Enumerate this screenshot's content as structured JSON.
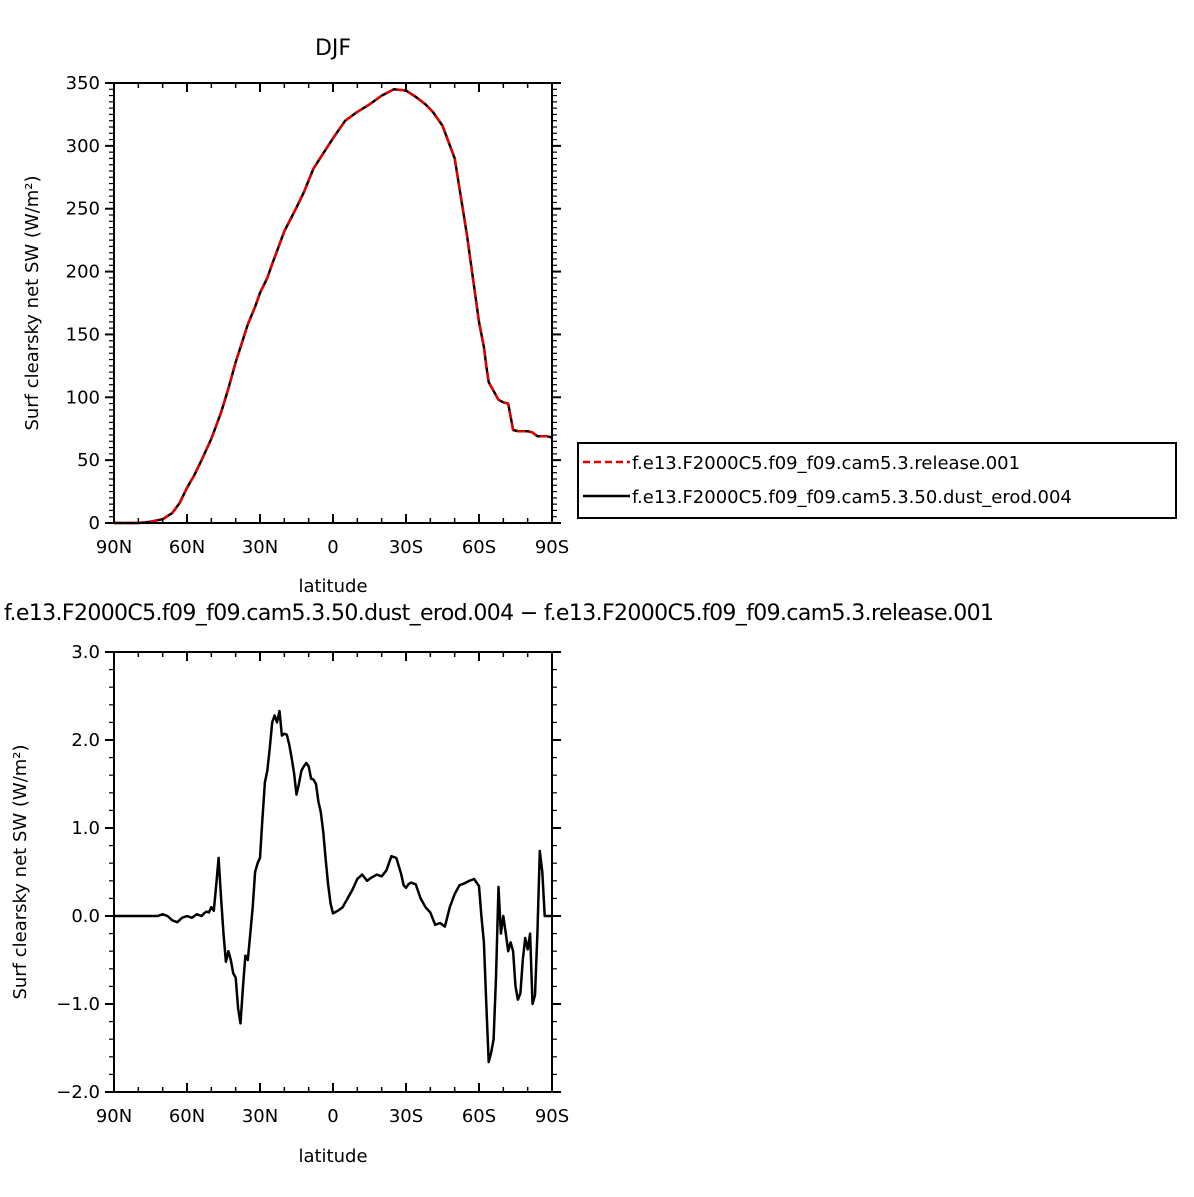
{
  "chart_data": [
    {
      "type": "line",
      "title": "DJF",
      "xlabel": "latitude",
      "ylabel": "Surf clearsky net SW (W/m²)",
      "xlim": [
        90,
        -90
      ],
      "ylim": [
        0,
        350
      ],
      "x_ticks": [
        90,
        60,
        30,
        0,
        -30,
        -60,
        -90
      ],
      "x_tick_labels": [
        "90N",
        "60N",
        "30N",
        "0",
        "30S",
        "60S",
        "90S"
      ],
      "y_ticks": [
        0,
        50,
        100,
        150,
        200,
        250,
        300,
        350
      ],
      "y_tick_labels": [
        "0",
        "50",
        "100",
        "150",
        "200",
        "250",
        "300",
        "350"
      ],
      "legend_position": "right",
      "series": [
        {
          "name": "f.e13.F2000C5.f09_f09.cam5.3.release.001",
          "color": "#e00000",
          "dash": "dashed",
          "x": [
            90,
            80,
            75,
            70,
            66,
            63,
            60,
            57,
            54,
            50,
            46,
            43,
            40,
            37,
            35,
            32,
            30,
            27,
            25,
            20,
            15,
            12,
            8,
            5,
            0,
            -5,
            -10,
            -15,
            -20,
            -25,
            -30,
            -34,
            -38,
            -41,
            -45,
            -50,
            -55,
            -60,
            -62,
            -63,
            -64,
            -66,
            -68,
            -70,
            -72,
            -74,
            -76,
            -78,
            -80,
            -82,
            -84,
            -86,
            -88,
            -90
          ],
          "y": [
            0,
            0,
            1,
            3,
            8,
            16,
            28,
            38,
            50,
            67,
            88,
            107,
            128,
            146,
            158,
            172,
            183,
            195,
            206,
            232,
            251,
            263,
            282,
            291,
            306,
            320,
            327,
            333,
            340,
            345,
            344,
            339,
            333,
            327,
            316,
            290,
            230,
            160,
            140,
            125,
            112,
            105,
            98,
            96,
            95,
            74,
            73,
            73,
            73,
            72,
            69,
            69,
            69,
            68
          ]
        },
        {
          "name": "f.e13.F2000C5.f09_f09.cam5.3.50.dust_erod.004",
          "color": "#000000",
          "dash": "solid",
          "x": [
            90,
            80,
            75,
            70,
            66,
            63,
            60,
            57,
            54,
            50,
            46,
            43,
            40,
            37,
            35,
            32,
            30,
            27,
            25,
            20,
            15,
            12,
            8,
            5,
            0,
            -5,
            -10,
            -15,
            -20,
            -25,
            -30,
            -34,
            -38,
            -41,
            -45,
            -50,
            -55,
            -60,
            -62,
            -63,
            -64,
            -66,
            -68,
            -70,
            -72,
            -74,
            -76,
            -78,
            -80,
            -82,
            -84,
            -86,
            -88,
            -90
          ],
          "y": [
            0,
            0,
            1,
            3,
            8,
            16,
            28,
            38,
            50,
            67,
            88,
            107,
            128,
            146,
            158,
            172,
            183,
            195,
            206,
            232,
            251,
            263,
            282,
            291,
            306,
            320,
            327,
            333,
            340,
            345,
            344,
            339,
            333,
            327,
            316,
            290,
            230,
            160,
            140,
            125,
            112,
            105,
            98,
            96,
            95,
            74,
            73,
            73,
            73,
            72,
            69,
            69,
            69,
            68
          ]
        }
      ]
    },
    {
      "type": "line",
      "title": "f.e13.F2000C5.f09_f09.cam5.3.50.dust_erod.004 − f.e13.F2000C5.f09_f09.cam5.3.release.001",
      "xlabel": "latitude",
      "ylabel": "Surf clearsky net SW (W/m²)",
      "xlim": [
        90,
        -90
      ],
      "ylim": [
        -2.0,
        3.0
      ],
      "x_ticks": [
        90,
        60,
        30,
        0,
        -30,
        -60,
        -90
      ],
      "x_tick_labels": [
        "90N",
        "60N",
        "30N",
        "0",
        "30S",
        "60S",
        "90S"
      ],
      "y_ticks": [
        -2.0,
        -1.0,
        0.0,
        1.0,
        2.0,
        3.0
      ],
      "y_tick_labels": [
        "−2.0",
        "−1.0",
        "0.0",
        "1.0",
        "2.0",
        "3.0"
      ],
      "series": [
        {
          "name": "",
          "color": "#000000",
          "dash": "solid",
          "x": [
            90,
            80,
            72,
            70,
            68,
            66,
            64,
            62,
            60,
            58,
            56,
            54,
            53,
            52,
            51,
            50,
            49,
            48,
            47,
            46,
            45,
            44,
            43,
            42,
            41,
            40,
            39,
            38,
            37,
            36,
            35,
            34,
            33,
            32,
            31,
            30,
            29,
            28,
            27,
            26,
            25,
            24,
            23,
            22,
            21,
            20,
            19,
            18,
            17,
            16,
            15,
            14,
            13,
            12,
            11,
            10,
            9,
            8,
            7,
            6,
            5,
            4,
            3,
            2,
            1,
            0,
            -2,
            -4,
            -6,
            -8,
            -10,
            -12,
            -14,
            -16,
            -18,
            -20,
            -22,
            -24,
            -26,
            -28,
            -29,
            -30,
            -31,
            -32,
            -34,
            -36,
            -38,
            -40,
            -42,
            -44,
            -46,
            -48,
            -50,
            -52,
            -54,
            -56,
            -58,
            -60,
            -61,
            -62,
            -63,
            -64,
            -65,
            -66,
            -67,
            -68,
            -69,
            -70,
            -71,
            -72,
            -73,
            -74,
            -75,
            -76,
            -77,
            -78,
            -79,
            -80,
            -81,
            -82,
            -83,
            -84,
            -85,
            -86,
            -87,
            -88,
            -89,
            -90
          ],
          "y": [
            0.0,
            0.0,
            0.0,
            0.02,
            0.0,
            -0.05,
            -0.07,
            -0.02,
            0.0,
            -0.02,
            0.02,
            0.0,
            0.03,
            0.05,
            0.04,
            0.1,
            0.06,
            0.35,
            0.66,
            0.2,
            -0.2,
            -0.52,
            -0.4,
            -0.5,
            -0.65,
            -0.7,
            -1.05,
            -1.22,
            -0.8,
            -0.45,
            -0.5,
            -0.2,
            0.1,
            0.5,
            0.6,
            0.66,
            1.1,
            1.52,
            1.65,
            1.9,
            2.2,
            2.28,
            2.2,
            2.33,
            2.05,
            2.07,
            2.06,
            1.95,
            1.8,
            1.62,
            1.38,
            1.5,
            1.65,
            1.7,
            1.74,
            1.7,
            1.56,
            1.55,
            1.5,
            1.3,
            1.18,
            0.95,
            0.64,
            0.36,
            0.14,
            0.03,
            0.06,
            0.1,
            0.2,
            0.3,
            0.42,
            0.47,
            0.4,
            0.44,
            0.47,
            0.45,
            0.52,
            0.68,
            0.66,
            0.48,
            0.35,
            0.32,
            0.36,
            0.38,
            0.36,
            0.2,
            0.1,
            0.04,
            -0.1,
            -0.08,
            -0.12,
            0.1,
            0.25,
            0.35,
            0.37,
            0.4,
            0.42,
            0.34,
            0.0,
            -0.3,
            -1.0,
            -1.66,
            -1.55,
            -1.4,
            -0.7,
            0.33,
            -0.2,
            0.0,
            -0.2,
            -0.4,
            -0.3,
            -0.4,
            -0.8,
            -0.95,
            -0.88,
            -0.5,
            -0.25,
            -0.38,
            -0.2,
            -1.0,
            -0.9,
            -0.2,
            0.74,
            0.5,
            0.0,
            0.0,
            0.0,
            0.0
          ]
        }
      ]
    }
  ]
}
